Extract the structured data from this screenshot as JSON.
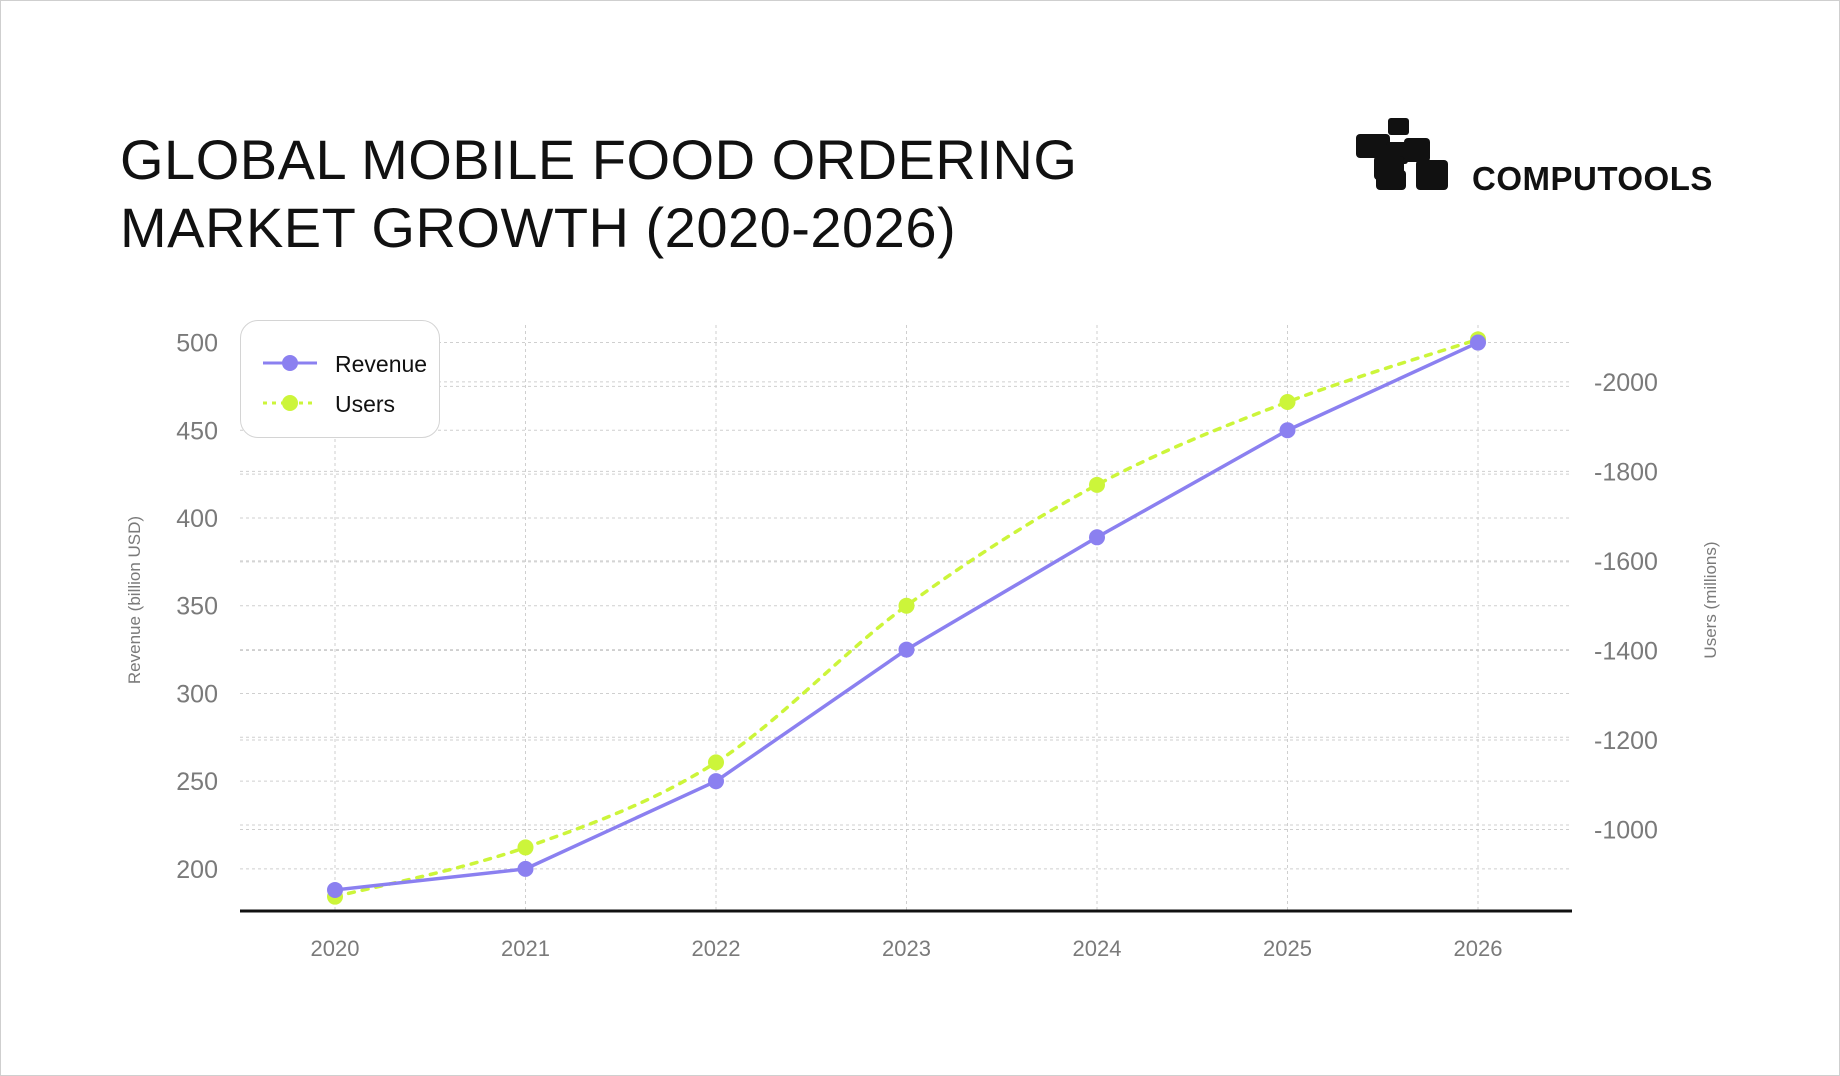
{
  "header": {
    "title_line1": "GLOBAL MOBILE FOOD ORDERING",
    "title_line2": "MARKET GROWTH (2020-2026)"
  },
  "brand": {
    "name": "COMPUTOOLS",
    "logo_icon": "computools-logo-icon"
  },
  "colors": {
    "revenue": "#8b80f0",
    "users": "#ccf53a",
    "axis": "#111111",
    "grid": "#cfcfcf",
    "tick_text": "#7a7a7a"
  },
  "chart_data": {
    "type": "line",
    "title": "GLOBAL MOBILE FOOD ORDERING MARKET GROWTH (2020-2026)",
    "categories": [
      "2020",
      "2021",
      "2022",
      "2023",
      "2024",
      "2025",
      "2026"
    ],
    "series": [
      {
        "name": "Revenue",
        "axis": "left",
        "style": "solid",
        "color": "#8b80f0",
        "values": [
          188,
          200,
          250,
          325,
          389,
          450,
          500
        ]
      },
      {
        "name": "Users",
        "axis": "right",
        "style": "dotted",
        "color": "#ccf53a",
        "values": [
          850,
          960,
          1150,
          1500,
          1770,
          1955,
          2095
        ]
      }
    ],
    "y_left": {
      "label": "Revenue (billion USD)",
      "ticks": [
        200,
        250,
        300,
        350,
        400,
        450,
        500
      ],
      "range": [
        176,
        510
      ]
    },
    "y_right": {
      "label": "Users (millions)",
      "ticks": [
        1000,
        1200,
        1400,
        1600,
        1800,
        2000
      ],
      "tick_labels": [
        "-1000",
        "-1200",
        "-1400",
        "-1600",
        "-1800",
        "-2000"
      ],
      "range": [
        818,
        2127
      ]
    },
    "grid": true,
    "legend": {
      "position": "top-left",
      "entries": [
        "Revenue",
        "Users"
      ]
    }
  }
}
